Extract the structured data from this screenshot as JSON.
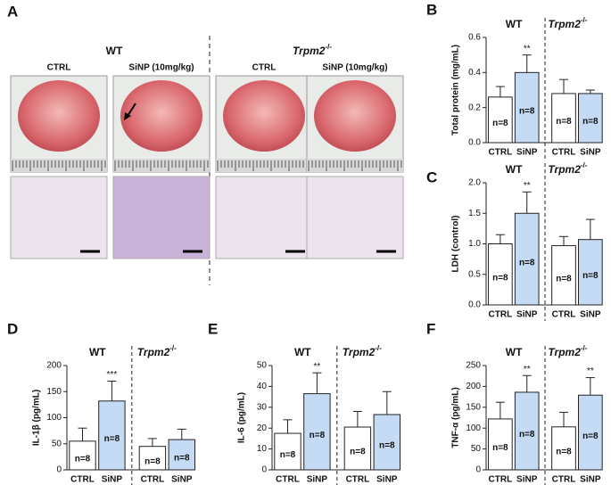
{
  "panel_a": {
    "panel": "A",
    "groups": [
      {
        "label": "WT"
      },
      {
        "label": "Trpm2",
        "sup": "-/-"
      }
    ],
    "columns": [
      "CTRL",
      "SiNP (10mg/kg)",
      "CTRL",
      "SiNP (10mg/kg)"
    ]
  },
  "chart_data": [
    {
      "type": "bar",
      "panel": "B",
      "ylabel": "Total protein (mg/mL)",
      "categories": [
        "CTRL",
        "SiNP",
        "CTRL",
        "SiNP"
      ],
      "groups": [
        {
          "label": "WT"
        },
        {
          "label": "Trpm2",
          "sup": "-/-"
        }
      ],
      "values": [
        0.26,
        0.4,
        0.28,
        0.28
      ],
      "errors": [
        0.06,
        0.1,
        0.08,
        0.02
      ],
      "colors": [
        "#ffffff",
        "#c5dbf5",
        "#ffffff",
        "#c5dbf5"
      ],
      "bar_labels": [
        "n=8",
        "n=8",
        "n=8",
        "n=8"
      ],
      "annotations": [
        null,
        "**",
        null,
        null
      ],
      "ylim": [
        0,
        0.6
      ],
      "yticks": [
        {
          "value": 0,
          "label": "0.0"
        },
        0.2,
        0.4,
        0.6
      ]
    },
    {
      "type": "bar",
      "panel": "C",
      "ylabel": "LDH (control)",
      "categories": [
        "CTRL",
        "SiNP",
        "CTRL",
        "SiNP"
      ],
      "groups": [
        {
          "label": "WT"
        },
        {
          "label": "Trpm2",
          "sup": "-/-"
        }
      ],
      "values": [
        1.0,
        1.5,
        0.97,
        1.07
      ],
      "errors": [
        0.15,
        0.35,
        0.15,
        0.33
      ],
      "colors": [
        "#ffffff",
        "#c5dbf5",
        "#ffffff",
        "#c5dbf5"
      ],
      "bar_labels": [
        "n=8",
        "n=8",
        "n=8",
        "n=8"
      ],
      "annotations": [
        null,
        "**",
        null,
        null
      ],
      "ylim": [
        0,
        2
      ],
      "yticks": [
        {
          "value": 0,
          "label": "0.0"
        },
        0.5,
        {
          "value": 1,
          "label": "1.0"
        },
        1.5,
        {
          "value": 2,
          "label": "2.0"
        }
      ]
    },
    {
      "type": "bar",
      "panel": "D",
      "ylabel": "IL-1β (pg/mL)",
      "categories": [
        "CTRL",
        "SiNP",
        "CTRL",
        "SiNP"
      ],
      "groups": [
        {
          "label": "WT"
        },
        {
          "label": "Trpm2",
          "sup": "-/-"
        }
      ],
      "values": [
        55,
        132,
        45,
        58
      ],
      "errors": [
        25,
        38,
        15,
        20
      ],
      "colors": [
        "#ffffff",
        "#c5dbf5",
        "#ffffff",
        "#c5dbf5"
      ],
      "bar_labels": [
        "n=8",
        "n=8",
        "n=8",
        "n=8"
      ],
      "annotations": [
        null,
        "***",
        null,
        null
      ],
      "ylim": [
        0,
        200
      ],
      "yticks": [
        0,
        50,
        100,
        150,
        200
      ]
    },
    {
      "type": "bar",
      "panel": "E",
      "ylabel": "IL-6 (pg/mL)",
      "categories": [
        "CTRL",
        "SiNP",
        "CTRL",
        "SiNP"
      ],
      "groups": [
        {
          "label": "WT"
        },
        {
          "label": "Trpm2",
          "sup": "-/-"
        }
      ],
      "values": [
        17.5,
        36.5,
        20.5,
        26.5
      ],
      "errors": [
        6.5,
        10,
        7.5,
        11
      ],
      "colors": [
        "#ffffff",
        "#c5dbf5",
        "#ffffff",
        "#c5dbf5"
      ],
      "bar_labels": [
        "n=8",
        "n=8",
        "n=8",
        "n=8"
      ],
      "annotations": [
        null,
        "**",
        null,
        null
      ],
      "ylim": [
        0,
        50
      ],
      "yticks": [
        0,
        10,
        20,
        30,
        40,
        50
      ]
    },
    {
      "type": "bar",
      "panel": "F",
      "ylabel": "TNF-α (pg/mL)",
      "categories": [
        "CTRL",
        "SiNP",
        "CTRL",
        "SiNP"
      ],
      "groups": [
        {
          "label": "WT"
        },
        {
          "label": "Trpm2",
          "sup": "-/-"
        }
      ],
      "values": [
        122,
        186,
        103,
        179
      ],
      "errors": [
        40,
        40,
        35,
        42
      ],
      "colors": [
        "#ffffff",
        "#c5dbf5",
        "#ffffff",
        "#c5dbf5"
      ],
      "bar_labels": [
        "n=8",
        "n=8",
        "n=8",
        "n=8"
      ],
      "annotations": [
        null,
        "**",
        null,
        "**"
      ],
      "ylim": [
        0,
        250
      ],
      "yticks": [
        0,
        50,
        100,
        150,
        200,
        250
      ]
    }
  ]
}
